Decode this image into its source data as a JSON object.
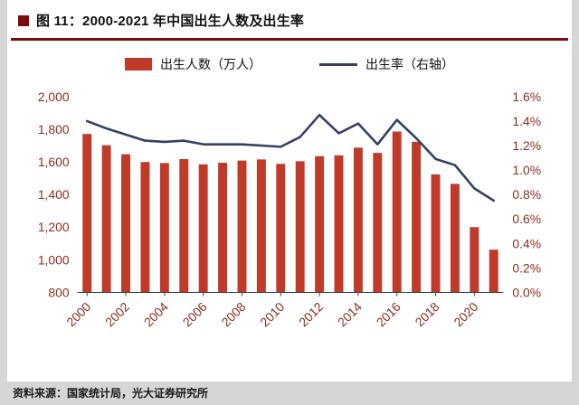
{
  "header": {
    "title": "图 11：2000-2021 年中国出生人数及出生率"
  },
  "legend": {
    "bars_label": "出生人数（万人）",
    "line_label": "出生率（右轴）"
  },
  "footer": {
    "source": "资料来源：国家统计局，光大证券研究所"
  },
  "colors": {
    "accent": "#7a0c0c",
    "bar": "#bf3a28",
    "line": "#333f67",
    "axis_label": "#8b2e1f",
    "axis_line": "#3f3f3f",
    "background": "#ffffff",
    "frame": "#d6d6d6"
  },
  "chart_data": {
    "type": "bar",
    "combo": "bar+line",
    "title": "图 11：2000-2021 年中国出生人数及出生率",
    "categories": [
      "2000",
      "2001",
      "2002",
      "2003",
      "2004",
      "2005",
      "2006",
      "2007",
      "2008",
      "2009",
      "2010",
      "2011",
      "2012",
      "2013",
      "2014",
      "2015",
      "2016",
      "2017",
      "2018",
      "2019",
      "2020",
      "2021"
    ],
    "series": [
      {
        "name": "出生人数（万人）",
        "type": "bar",
        "axis": "left",
        "values": [
          1771,
          1702,
          1647,
          1599,
          1593,
          1617,
          1585,
          1595,
          1608,
          1615,
          1588,
          1604,
          1635,
          1640,
          1687,
          1655,
          1786,
          1723,
          1523,
          1465,
          1200,
          1062
        ]
      },
      {
        "name": "出生率（右轴）",
        "type": "line",
        "axis": "right",
        "values": [
          1.4,
          1.34,
          1.29,
          1.24,
          1.23,
          1.24,
          1.21,
          1.21,
          1.21,
          1.2,
          1.19,
          1.27,
          1.45,
          1.3,
          1.38,
          1.21,
          1.41,
          1.26,
          1.09,
          1.04,
          0.85,
          0.75
        ]
      }
    ],
    "left_axis": {
      "min": 800,
      "max": 2000,
      "tick_values": [
        800,
        1000,
        1200,
        1400,
        1600,
        1800,
        2000
      ],
      "tick_labels": [
        "800",
        "1,000",
        "1,200",
        "1,400",
        "1,600",
        "1,800",
        "2,000"
      ]
    },
    "right_axis": {
      "min": 0,
      "max": 1.6,
      "tick_values": [
        0,
        0.2,
        0.4,
        0.6,
        0.8,
        1.0,
        1.2,
        1.4,
        1.6
      ],
      "tick_labels": [
        "0.0%",
        "0.2%",
        "0.4%",
        "0.6%",
        "0.8%",
        "1.0%",
        "1.2%",
        "1.4%",
        "1.6%"
      ]
    },
    "x_tick_labels": [
      "2000",
      "2002",
      "2004",
      "2006",
      "2008",
      "2010",
      "2012",
      "2014",
      "2016",
      "2018",
      "2020"
    ],
    "grid": false,
    "legend_position": "top"
  }
}
